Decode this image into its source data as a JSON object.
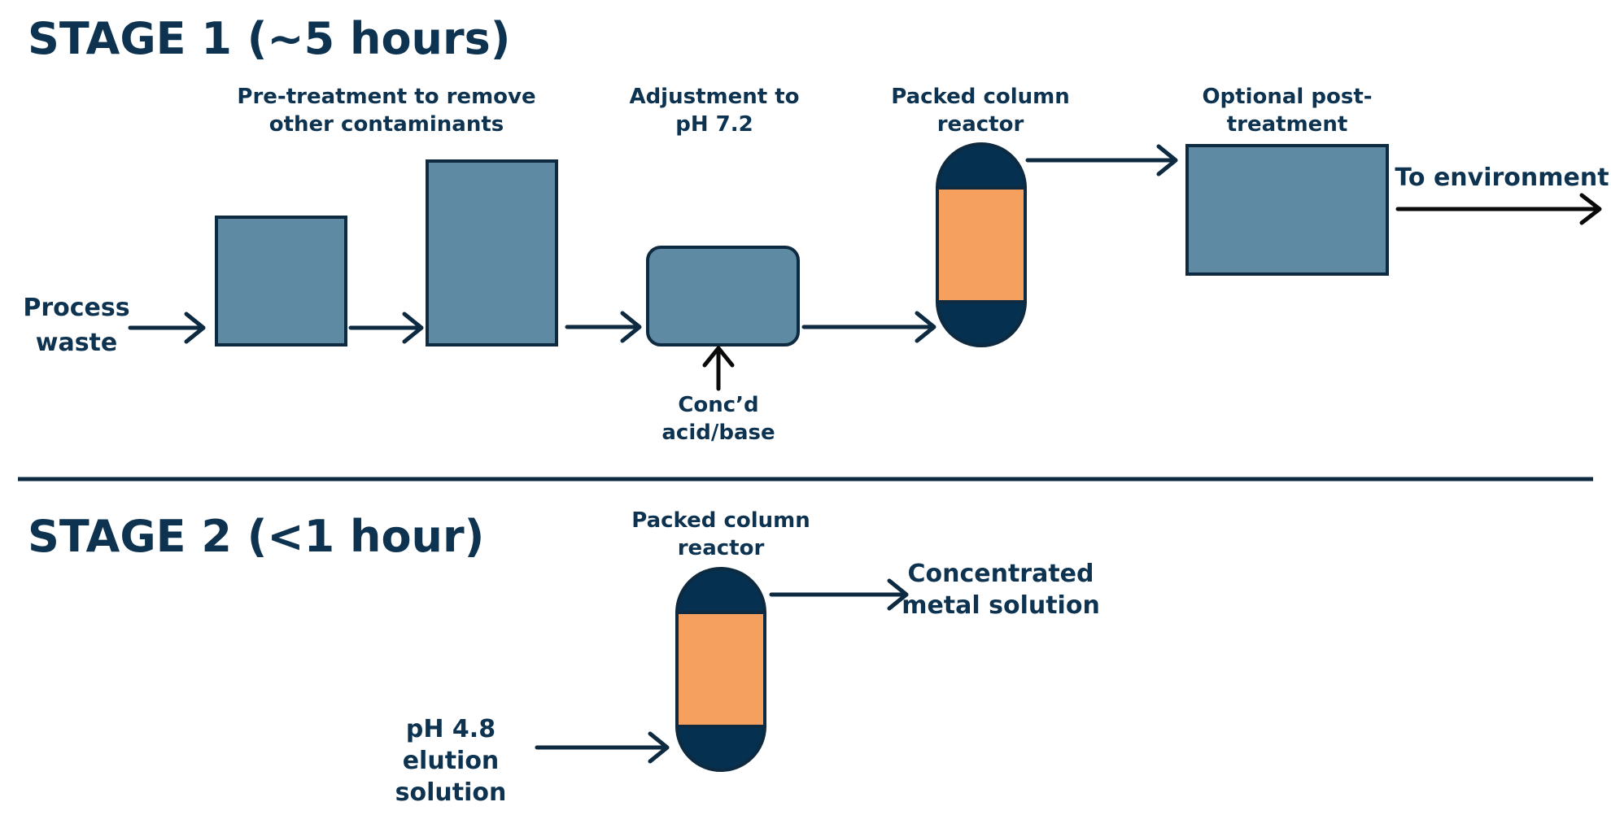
{
  "stage1": {
    "title": "STAGE 1 (~5 hours)",
    "inlet_label": [
      "Process",
      "waste"
    ],
    "pretreatment_label": [
      "Pre-treatment to remove",
      "other contaminants"
    ],
    "adjustment_label": [
      "Adjustment to",
      "pH 7.2"
    ],
    "reagent_label": [
      "Conc’d",
      "acid/base"
    ],
    "column_label": [
      "Packed column",
      "reactor"
    ],
    "post_treatment_label": [
      "Optional post-",
      "treatment"
    ],
    "outlet_label": "To environment"
  },
  "stage2": {
    "title": "STAGE 2 (<1 hour)",
    "column_label": [
      "Packed column",
      "reactor"
    ],
    "inlet_label": [
      "pH 4.8",
      "elution",
      "solution"
    ],
    "outlet_label": [
      "Concentrated",
      "metal solution"
    ]
  },
  "colors": {
    "text": "#0d3350",
    "unit_fill": "#5e8aa3",
    "column_cap": "#05304f",
    "column_packing": "#f6a05f"
  }
}
